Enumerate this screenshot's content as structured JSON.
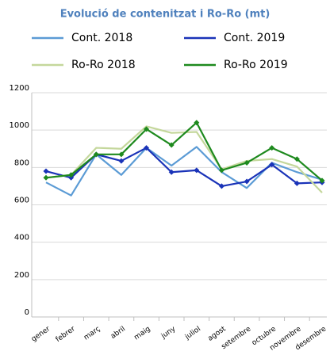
{
  "chart_data": {
    "type": "line",
    "title": "Evolució de contenitzat i Ro-Ro (mt)",
    "categories": [
      "gener",
      "febrer",
      "març",
      "abril",
      "maig",
      "juny",
      "juliol",
      "agost",
      "setembre",
      "octubre",
      "novembre",
      "desembre"
    ],
    "series": [
      {
        "name": "Cont. 2018",
        "color": "#5b9bd5",
        "marker": false,
        "values": [
          720,
          650,
          870,
          760,
          905,
          810,
          910,
          775,
          690,
          825,
          775,
          735
        ]
      },
      {
        "name": "Cont. 2019",
        "color": "#1a33b8",
        "marker": true,
        "values": [
          780,
          745,
          870,
          835,
          905,
          775,
          785,
          700,
          725,
          815,
          715,
          720
        ]
      },
      {
        "name": "Ro-Ro 2018",
        "color": "#c4d79b",
        "marker": false,
        "values": [
          745,
          760,
          905,
          900,
          1020,
          985,
          990,
          790,
          835,
          845,
          805,
          665
        ]
      },
      {
        "name": "Ro-Ro 2019",
        "color": "#1e8a1e",
        "marker": true,
        "values": [
          745,
          760,
          870,
          870,
          1005,
          920,
          1040,
          785,
          825,
          905,
          845,
          730
        ]
      }
    ],
    "ylim": [
      0,
      1200
    ],
    "yticks": [
      0,
      200,
      400,
      600,
      800,
      1000,
      1200
    ],
    "grid": true
  }
}
